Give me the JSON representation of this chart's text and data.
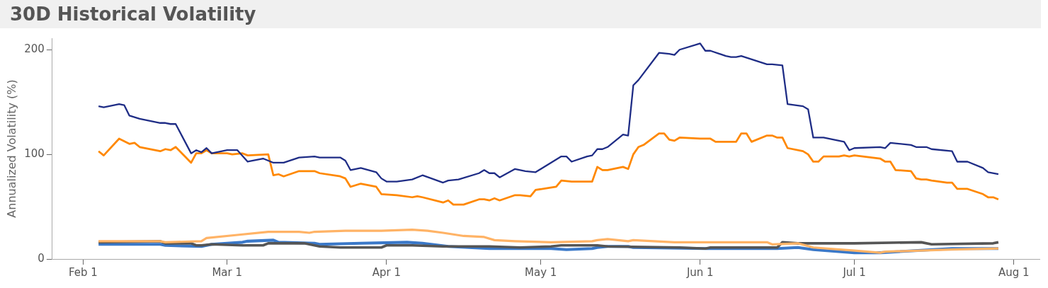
{
  "chart_data": {
    "type": "line",
    "title": "30D Historical Volatility",
    "ylabel": "Annualized Volatility (%)",
    "xlim": [
      "--01-26",
      "--08-06"
    ],
    "xticks": [
      {
        "value": "--02-01",
        "label": "Feb 1"
      },
      {
        "value": "--03-01",
        "label": "Mar 1"
      },
      {
        "value": "--04-01",
        "label": "Apr 1"
      },
      {
        "value": "--05-01",
        "label": "May 1"
      },
      {
        "value": "--06-01",
        "label": "Jun 1"
      },
      {
        "value": "--07-01",
        "label": "Jul 1"
      },
      {
        "value": "--08-01",
        "label": "Aug 1"
      }
    ],
    "ylim": [
      0,
      211
    ],
    "yticks": [
      0,
      100,
      200
    ],
    "series": [
      {
        "color": "#1f2d86",
        "x": [
          "--02-04",
          "--02-05",
          "--02-08",
          "--02-09",
          "--02-10",
          "--02-12",
          "--02-16",
          "--02-17",
          "--02-18",
          "--02-19",
          "--02-22",
          "--02-23",
          "--02-24",
          "--02-25",
          "--02-26",
          "--03-01",
          "--03-03",
          "--03-05",
          "--03-08",
          "--03-10",
          "--03-12",
          "--03-15",
          "--03-18",
          "--03-19",
          "--03-23",
          "--03-24",
          "--03-25",
          "--03-27",
          "--03-30",
          "--03-31",
          "--04-01",
          "--04-03",
          "--04-06",
          "--04-08",
          "--04-12",
          "--04-13",
          "--04-15",
          "--04-19",
          "--04-20",
          "--04-21",
          "--04-22",
          "--04-23",
          "--04-26",
          "--04-28",
          "--04-30",
          "--05-05",
          "--05-06",
          "--05-07",
          "--05-10",
          "--05-11",
          "--05-12",
          "--05-13",
          "--05-14",
          "--05-17",
          "--05-18",
          "--05-19",
          "--05-20",
          "--05-24",
          "--05-26",
          "--05-27",
          "--05-28",
          "--06-01",
          "--06-02",
          "--06-03",
          "--06-06",
          "--06-07",
          "--06-08",
          "--06-09",
          "--06-14",
          "--06-15",
          "--06-17",
          "--06-18",
          "--06-21",
          "--06-22",
          "--06-23",
          "--06-25",
          "--06-28",
          "--06-29",
          "--06-30",
          "--07-01",
          "--07-06",
          "--07-07",
          "--07-08",
          "--07-12",
          "--07-13",
          "--07-15",
          "--07-16",
          "--07-20",
          "--07-21",
          "--07-23",
          "--07-26",
          "--07-27",
          "--07-29"
        ],
        "values": [
          146,
          145,
          148,
          147,
          137,
          134,
          130,
          130,
          129,
          129,
          101,
          104,
          102,
          106,
          101,
          104,
          104,
          93,
          96,
          92,
          92,
          97,
          98,
          97,
          97,
          94,
          85,
          87,
          83,
          77,
          74,
          74,
          76,
          80,
          73,
          75,
          76,
          82,
          85,
          82,
          82,
          78,
          86,
          84,
          83,
          98,
          98,
          93,
          98,
          99,
          105,
          105,
          107,
          119,
          118,
          166,
          171,
          197,
          196,
          195,
          200,
          206,
          199,
          199,
          194,
          193,
          193,
          194,
          186,
          186,
          185,
          148,
          146,
          143,
          116,
          116,
          113,
          112,
          104,
          106,
          107,
          106,
          111,
          109,
          107,
          107,
          105,
          103,
          93,
          93,
          87,
          83,
          81
        ]
      },
      {
        "color": "#ff8800",
        "x": [
          "--02-04",
          "--02-05",
          "--02-08",
          "--02-10",
          "--02-11",
          "--02-12",
          "--02-16",
          "--02-17",
          "--02-18",
          "--02-19",
          "--02-22",
          "--02-23",
          "--02-24",
          "--02-25",
          "--02-26",
          "--03-01",
          "--03-02",
          "--03-04",
          "--03-05",
          "--03-09",
          "--03-10",
          "--03-11",
          "--03-12",
          "--03-15",
          "--03-18",
          "--03-19",
          "--03-23",
          "--03-24",
          "--03-25",
          "--03-27",
          "--03-30",
          "--03-31",
          "--04-03",
          "--04-06",
          "--04-07",
          "--04-08",
          "--04-12",
          "--04-13",
          "--04-14",
          "--04-16",
          "--04-19",
          "--04-20",
          "--04-21",
          "--04-22",
          "--04-23",
          "--04-26",
          "--04-27",
          "--04-29",
          "--04-30",
          "--05-04",
          "--05-05",
          "--05-07",
          "--05-11",
          "--05-12",
          "--05-13",
          "--05-14",
          "--05-17",
          "--05-18",
          "--05-19",
          "--05-20",
          "--05-21",
          "--05-24",
          "--05-25",
          "--05-26",
          "--05-27",
          "--05-28",
          "--06-01",
          "--06-03",
          "--06-04",
          "--06-07",
          "--06-08",
          "--06-09",
          "--06-10",
          "--06-11",
          "--06-14",
          "--06-15",
          "--06-16",
          "--06-17",
          "--06-18",
          "--06-21",
          "--06-22",
          "--06-23",
          "--06-24",
          "--06-25",
          "--06-28",
          "--06-29",
          "--06-30",
          "--07-01",
          "--07-06",
          "--07-07",
          "--07-08",
          "--07-09",
          "--07-12",
          "--07-13",
          "--07-14",
          "--07-15",
          "--07-16",
          "--07-19",
          "--07-20",
          "--07-21",
          "--07-23",
          "--07-26",
          "--07-27",
          "--07-28",
          "--07-29"
        ],
        "values": [
          103,
          99,
          115,
          110,
          111,
          107,
          103,
          105,
          104,
          107,
          92,
          101,
          101,
          104,
          101,
          101,
          100,
          101,
          99,
          100,
          80,
          81,
          79,
          84,
          84,
          82,
          79,
          77,
          69,
          72,
          69,
          62,
          61,
          59,
          60,
          59,
          54,
          56,
          52,
          52,
          57,
          57,
          56,
          58,
          56,
          61,
          61,
          60,
          66,
          69,
          75,
          74,
          74,
          88,
          85,
          85,
          88,
          86,
          100,
          107,
          109,
          120,
          120,
          114,
          113,
          116,
          115,
          115,
          112,
          112,
          112,
          120,
          120,
          112,
          118,
          118,
          116,
          116,
          106,
          103,
          100,
          93,
          93,
          98,
          98,
          99,
          98,
          99,
          96,
          93,
          93,
          85,
          84,
          77,
          76,
          76,
          75,
          73,
          73,
          67,
          67,
          62,
          59,
          59,
          57
        ]
      },
      {
        "color": "#ffb366",
        "x": [
          "--02-04",
          "--02-16",
          "--02-17",
          "--02-24",
          "--02-25",
          "--03-03",
          "--03-09",
          "--03-15",
          "--03-17",
          "--03-18",
          "--03-24",
          "--03-31",
          "--04-06",
          "--04-09",
          "--04-12",
          "--04-16",
          "--04-20",
          "--04-22",
          "--04-26",
          "--05-03",
          "--05-11",
          "--05-12",
          "--05-14",
          "--05-18",
          "--05-19",
          "--05-27",
          "--06-14",
          "--06-15",
          "--06-20",
          "--06-23",
          "--07-01",
          "--07-06",
          "--07-07",
          "--07-20",
          "--07-29"
        ],
        "values": [
          17,
          17,
          16,
          17,
          20,
          23,
          26,
          26,
          25,
          26,
          27,
          27,
          28,
          27,
          25,
          22,
          21,
          18,
          17,
          16,
          17,
          18,
          19,
          17,
          18,
          16,
          16,
          14,
          15,
          11,
          8,
          6,
          7,
          9,
          10
        ]
      },
      {
        "color": "#555555",
        "x": [
          "--02-04",
          "--02-16",
          "--02-17",
          "--02-22",
          "--02-23",
          "--02-24",
          "--02-26",
          "--03-04",
          "--03-08",
          "--03-09",
          "--03-16",
          "--03-19",
          "--03-23",
          "--03-31",
          "--04-01",
          "--04-06",
          "--04-12",
          "--04-21",
          "--04-27",
          "--05-03",
          "--05-05",
          "--05-12",
          "--05-14",
          "--05-28",
          "--06-02",
          "--06-03",
          "--06-16",
          "--06-17",
          "--06-20",
          "--07-01",
          "--07-14",
          "--07-16",
          "--07-28",
          "--07-29"
        ],
        "values": [
          16,
          17,
          15,
          15,
          13,
          13,
          14,
          13,
          13,
          15,
          15,
          12,
          11,
          11,
          13,
          13,
          12,
          12,
          11,
          12,
          13,
          13,
          12,
          11,
          10,
          11,
          11,
          16,
          15,
          15,
          16,
          14,
          15,
          16
        ]
      },
      {
        "color": "#3a78c8",
        "x": [
          "--02-04",
          "--02-16",
          "--02-17",
          "--02-24",
          "--02-26",
          "--03-04",
          "--03-05",
          "--03-10",
          "--03-11",
          "--03-18",
          "--03-19",
          "--03-27",
          "--04-05",
          "--04-08",
          "--04-13",
          "--04-21",
          "--05-03",
          "--05-06",
          "--05-11",
          "--05-12",
          "--05-14",
          "--05-18",
          "--05-19",
          "--06-02",
          "--06-16",
          "--06-20",
          "--06-23",
          "--07-01",
          "--07-06",
          "--07-20",
          "--07-29"
        ],
        "values": [
          14,
          14,
          13,
          12,
          14,
          16,
          17,
          18,
          16,
          15,
          14,
          15,
          16,
          15,
          12,
          10,
          10,
          9,
          10,
          11,
          12,
          12,
          11,
          10,
          10,
          11,
          9,
          6,
          6,
          10,
          10
        ]
      }
    ]
  }
}
